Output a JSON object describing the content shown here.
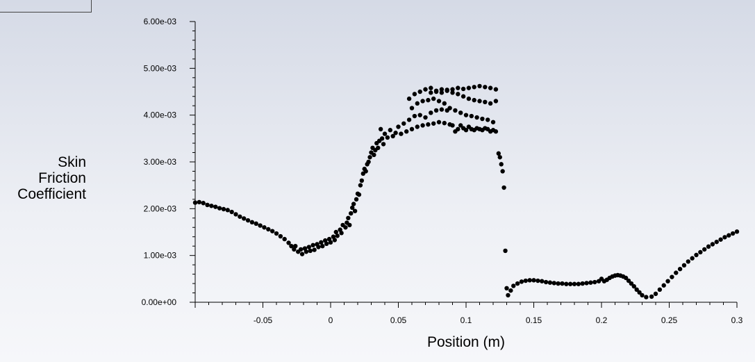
{
  "chart_data": {
    "type": "scatter",
    "xlabel": "Position (m)",
    "ylabel_lines": [
      "Skin",
      "Friction",
      "Coefficient"
    ],
    "xlim": [
      -0.1,
      0.3
    ],
    "ylim": [
      0,
      0.006
    ],
    "x_ticks": [
      {
        "value": -0.05,
        "label": "-0.05"
      },
      {
        "value": 0,
        "label": "0"
      },
      {
        "value": 0.05,
        "label": "0.05"
      },
      {
        "value": 0.1,
        "label": "0.1"
      },
      {
        "value": 0.15,
        "label": "0.15"
      },
      {
        "value": 0.2,
        "label": "0.2"
      },
      {
        "value": 0.25,
        "label": "0.25"
      },
      {
        "value": 0.3,
        "label": "0.3"
      }
    ],
    "y_ticks": [
      {
        "value": 0,
        "label": "0.00e+00"
      },
      {
        "value": 0.001,
        "label": "1.00e-03"
      },
      {
        "value": 0.002,
        "label": "2.00e-03"
      },
      {
        "value": 0.003,
        "label": "3.00e-03"
      },
      {
        "value": 0.004,
        "label": "4.00e-03"
      },
      {
        "value": 0.005,
        "label": "5.00e-03"
      },
      {
        "value": 0.006,
        "label": "6.00e-03"
      }
    ],
    "marker_color": "#000000",
    "series": [
      {
        "points": [
          [
            -0.1,
            0.00213
          ],
          [
            -0.097,
            0.00214
          ],
          [
            -0.094,
            0.00212
          ],
          [
            -0.091,
            0.00208
          ],
          [
            -0.088,
            0.00206
          ],
          [
            -0.085,
            0.00204
          ],
          [
            -0.082,
            0.00201
          ],
          [
            -0.079,
            0.00199
          ],
          [
            -0.076,
            0.00197
          ],
          [
            -0.073,
            0.00193
          ],
          [
            -0.07,
            0.00188
          ],
          [
            -0.067,
            0.00183
          ],
          [
            -0.064,
            0.00179
          ],
          [
            -0.061,
            0.00175
          ],
          [
            -0.058,
            0.00171
          ],
          [
            -0.055,
            0.00168
          ],
          [
            -0.052,
            0.00164
          ],
          [
            -0.049,
            0.0016
          ],
          [
            -0.046,
            0.00156
          ],
          [
            -0.043,
            0.00152
          ],
          [
            -0.04,
            0.00147
          ],
          [
            -0.037,
            0.00141
          ],
          [
            -0.034,
            0.00135
          ],
          [
            -0.031,
            0.00127
          ],
          [
            -0.029,
            0.0012
          ],
          [
            -0.027,
            0.00113
          ],
          [
            -0.026,
            0.0012
          ],
          [
            -0.024,
            0.00108
          ],
          [
            -0.022,
            0.00113
          ],
          [
            -0.021,
            0.00103
          ],
          [
            -0.019,
            0.00115
          ],
          [
            -0.018,
            0.00108
          ],
          [
            -0.016,
            0.00118
          ],
          [
            -0.015,
            0.0011
          ],
          [
            -0.013,
            0.00122
          ],
          [
            -0.012,
            0.00112
          ],
          [
            -0.01,
            0.00124
          ],
          [
            -0.009,
            0.00118
          ],
          [
            -0.007,
            0.00128
          ],
          [
            -0.006,
            0.0012
          ],
          [
            -0.004,
            0.00132
          ],
          [
            -0.003,
            0.00125
          ],
          [
            -0.001,
            0.00135
          ],
          [
            0.0,
            0.00128
          ],
          [
            0.002,
            0.0014
          ],
          [
            0.003,
            0.00133
          ],
          [
            0.004,
            0.0015
          ],
          [
            0.005,
            0.00142
          ],
          [
            0.007,
            0.00155
          ],
          [
            0.008,
            0.00148
          ],
          [
            0.009,
            0.00165
          ],
          [
            0.011,
            0.0016
          ],
          [
            0.012,
            0.0017
          ],
          [
            0.013,
            0.0018
          ],
          [
            0.014,
            0.00165
          ],
          [
            0.015,
            0.0019
          ],
          [
            0.016,
            0.00202
          ],
          [
            0.017,
            0.0021
          ],
          [
            0.018,
            0.00195
          ],
          [
            0.019,
            0.0022
          ],
          [
            0.02,
            0.00232
          ],
          [
            0.021,
            0.0023
          ],
          [
            0.022,
            0.0025
          ],
          [
            0.023,
            0.0026
          ],
          [
            0.024,
            0.00275
          ],
          [
            0.025,
            0.00285
          ],
          [
            0.026,
            0.0028
          ],
          [
            0.027,
            0.00295
          ],
          [
            0.028,
            0.003
          ],
          [
            0.029,
            0.0031
          ],
          [
            0.03,
            0.0032
          ],
          [
            0.031,
            0.0033
          ],
          [
            0.032,
            0.00315
          ],
          [
            0.033,
            0.00325
          ],
          [
            0.034,
            0.0034
          ],
          [
            0.035,
            0.0033
          ],
          [
            0.036,
            0.00345
          ],
          [
            0.037,
            0.0037
          ],
          [
            0.038,
            0.0035
          ],
          [
            0.039,
            0.00338
          ],
          [
            0.04,
            0.0036
          ],
          [
            0.042,
            0.00352
          ],
          [
            0.044,
            0.00368
          ],
          [
            0.046,
            0.00355
          ],
          [
            0.048,
            0.00362
          ],
          [
            0.05,
            0.00375
          ],
          [
            0.052,
            0.0036
          ],
          [
            0.054,
            0.00382
          ],
          [
            0.056,
            0.00365
          ],
          [
            0.058,
            0.0039
          ],
          [
            0.06,
            0.0037
          ],
          [
            0.062,
            0.00398
          ],
          [
            0.064,
            0.00375
          ],
          [
            0.066,
            0.004
          ],
          [
            0.068,
            0.00378
          ],
          [
            0.07,
            0.00395
          ],
          [
            0.072,
            0.0038
          ],
          [
            0.074,
            0.00405
          ],
          [
            0.076,
            0.00382
          ],
          [
            0.078,
            0.0041
          ],
          [
            0.08,
            0.00385
          ],
          [
            0.082,
            0.00412
          ],
          [
            0.084,
            0.00383
          ],
          [
            0.086,
            0.0041
          ],
          [
            0.088,
            0.0038
          ],
          [
            0.09,
            0.00378
          ],
          [
            0.092,
            0.00365
          ],
          [
            0.094,
            0.0037
          ],
          [
            0.096,
            0.00378
          ],
          [
            0.098,
            0.00372
          ],
          [
            0.1,
            0.00368
          ],
          [
            0.102,
            0.00375
          ],
          [
            0.104,
            0.0037
          ],
          [
            0.106,
            0.00368
          ],
          [
            0.108,
            0.00372
          ],
          [
            0.11,
            0.0037
          ],
          [
            0.112,
            0.00368
          ],
          [
            0.114,
            0.00372
          ],
          [
            0.116,
            0.0037
          ],
          [
            0.118,
            0.00365
          ],
          [
            0.12,
            0.00368
          ],
          [
            0.122,
            0.00365
          ],
          [
            0.06,
            0.00415
          ],
          [
            0.064,
            0.00425
          ],
          [
            0.068,
            0.0043
          ],
          [
            0.072,
            0.00432
          ],
          [
            0.076,
            0.00435
          ],
          [
            0.08,
            0.0043
          ],
          [
            0.084,
            0.00425
          ],
          [
            0.088,
            0.00415
          ],
          [
            0.092,
            0.0041
          ],
          [
            0.096,
            0.00405
          ],
          [
            0.1,
            0.004
          ],
          [
            0.104,
            0.00398
          ],
          [
            0.108,
            0.00395
          ],
          [
            0.112,
            0.00392
          ],
          [
            0.116,
            0.0039
          ],
          [
            0.12,
            0.00385
          ],
          [
            0.058,
            0.00435
          ],
          [
            0.062,
            0.00445
          ],
          [
            0.066,
            0.0045
          ],
          [
            0.07,
            0.00455
          ],
          [
            0.074,
            0.00458
          ],
          [
            0.078,
            0.0045
          ],
          [
            0.082,
            0.00455
          ],
          [
            0.086,
            0.00452
          ],
          [
            0.09,
            0.00448
          ],
          [
            0.094,
            0.00445
          ],
          [
            0.098,
            0.0044
          ],
          [
            0.102,
            0.00435
          ],
          [
            0.106,
            0.00432
          ],
          [
            0.11,
            0.0043
          ],
          [
            0.114,
            0.00428
          ],
          [
            0.118,
            0.00425
          ],
          [
            0.122,
            0.0043
          ],
          [
            0.074,
            0.00448
          ],
          [
            0.078,
            0.00452
          ],
          [
            0.082,
            0.00448
          ],
          [
            0.086,
            0.00454
          ],
          [
            0.09,
            0.00455
          ],
          [
            0.094,
            0.00458
          ],
          [
            0.098,
            0.00456
          ],
          [
            0.102,
            0.00458
          ],
          [
            0.106,
            0.0046
          ],
          [
            0.11,
            0.00462
          ],
          [
            0.114,
            0.0046
          ],
          [
            0.118,
            0.00458
          ],
          [
            0.122,
            0.00455
          ],
          [
            0.124,
            0.00318
          ],
          [
            0.125,
            0.0031
          ],
          [
            0.126,
            0.00295
          ],
          [
            0.127,
            0.0028
          ],
          [
            0.128,
            0.00245
          ],
          [
            0.129,
            0.0011
          ],
          [
            0.13,
            0.0003
          ],
          [
            0.131,
            0.00015
          ],
          [
            0.133,
            0.00025
          ],
          [
            0.135,
            0.00035
          ],
          [
            0.138,
            0.0004
          ],
          [
            0.141,
            0.00044
          ],
          [
            0.144,
            0.00046
          ],
          [
            0.147,
            0.00047
          ],
          [
            0.15,
            0.00047
          ],
          [
            0.153,
            0.00046
          ],
          [
            0.156,
            0.00045
          ],
          [
            0.159,
            0.00043
          ],
          [
            0.162,
            0.00042
          ],
          [
            0.165,
            0.00041
          ],
          [
            0.168,
            0.0004
          ],
          [
            0.171,
            0.0004
          ],
          [
            0.174,
            0.00039
          ],
          [
            0.177,
            0.00039
          ],
          [
            0.18,
            0.00039
          ],
          [
            0.183,
            0.00039
          ],
          [
            0.186,
            0.0004
          ],
          [
            0.189,
            0.00041
          ],
          [
            0.192,
            0.00042
          ],
          [
            0.195,
            0.00043
          ],
          [
            0.198,
            0.00045
          ],
          [
            0.2,
            0.0005
          ],
          [
            0.202,
            0.00045
          ],
          [
            0.204,
            0.00048
          ],
          [
            0.206,
            0.00052
          ],
          [
            0.208,
            0.00055
          ],
          [
            0.21,
            0.00057
          ],
          [
            0.212,
            0.00058
          ],
          [
            0.214,
            0.00057
          ],
          [
            0.216,
            0.00055
          ],
          [
            0.218,
            0.00052
          ],
          [
            0.22,
            0.00046
          ],
          [
            0.222,
            0.0004
          ],
          [
            0.224,
            0.00034
          ],
          [
            0.226,
            0.00027
          ],
          [
            0.228,
            0.00021
          ],
          [
            0.23,
            0.00015
          ],
          [
            0.233,
            0.00011
          ],
          [
            0.237,
            0.00012
          ],
          [
            0.24,
            0.00018
          ],
          [
            0.243,
            0.00027
          ],
          [
            0.246,
            0.00036
          ],
          [
            0.249,
            0.00045
          ],
          [
            0.252,
            0.00054
          ],
          [
            0.255,
            0.00063
          ],
          [
            0.258,
            0.00071
          ],
          [
            0.261,
            0.00079
          ],
          [
            0.264,
            0.00087
          ],
          [
            0.267,
            0.00094
          ],
          [
            0.27,
            0.00101
          ],
          [
            0.273,
            0.00107
          ],
          [
            0.276,
            0.00113
          ],
          [
            0.279,
            0.00119
          ],
          [
            0.282,
            0.00124
          ],
          [
            0.285,
            0.00129
          ],
          [
            0.288,
            0.00134
          ],
          [
            0.291,
            0.00139
          ],
          [
            0.294,
            0.00143
          ],
          [
            0.297,
            0.00147
          ],
          [
            0.3,
            0.00151
          ]
        ]
      }
    ]
  }
}
